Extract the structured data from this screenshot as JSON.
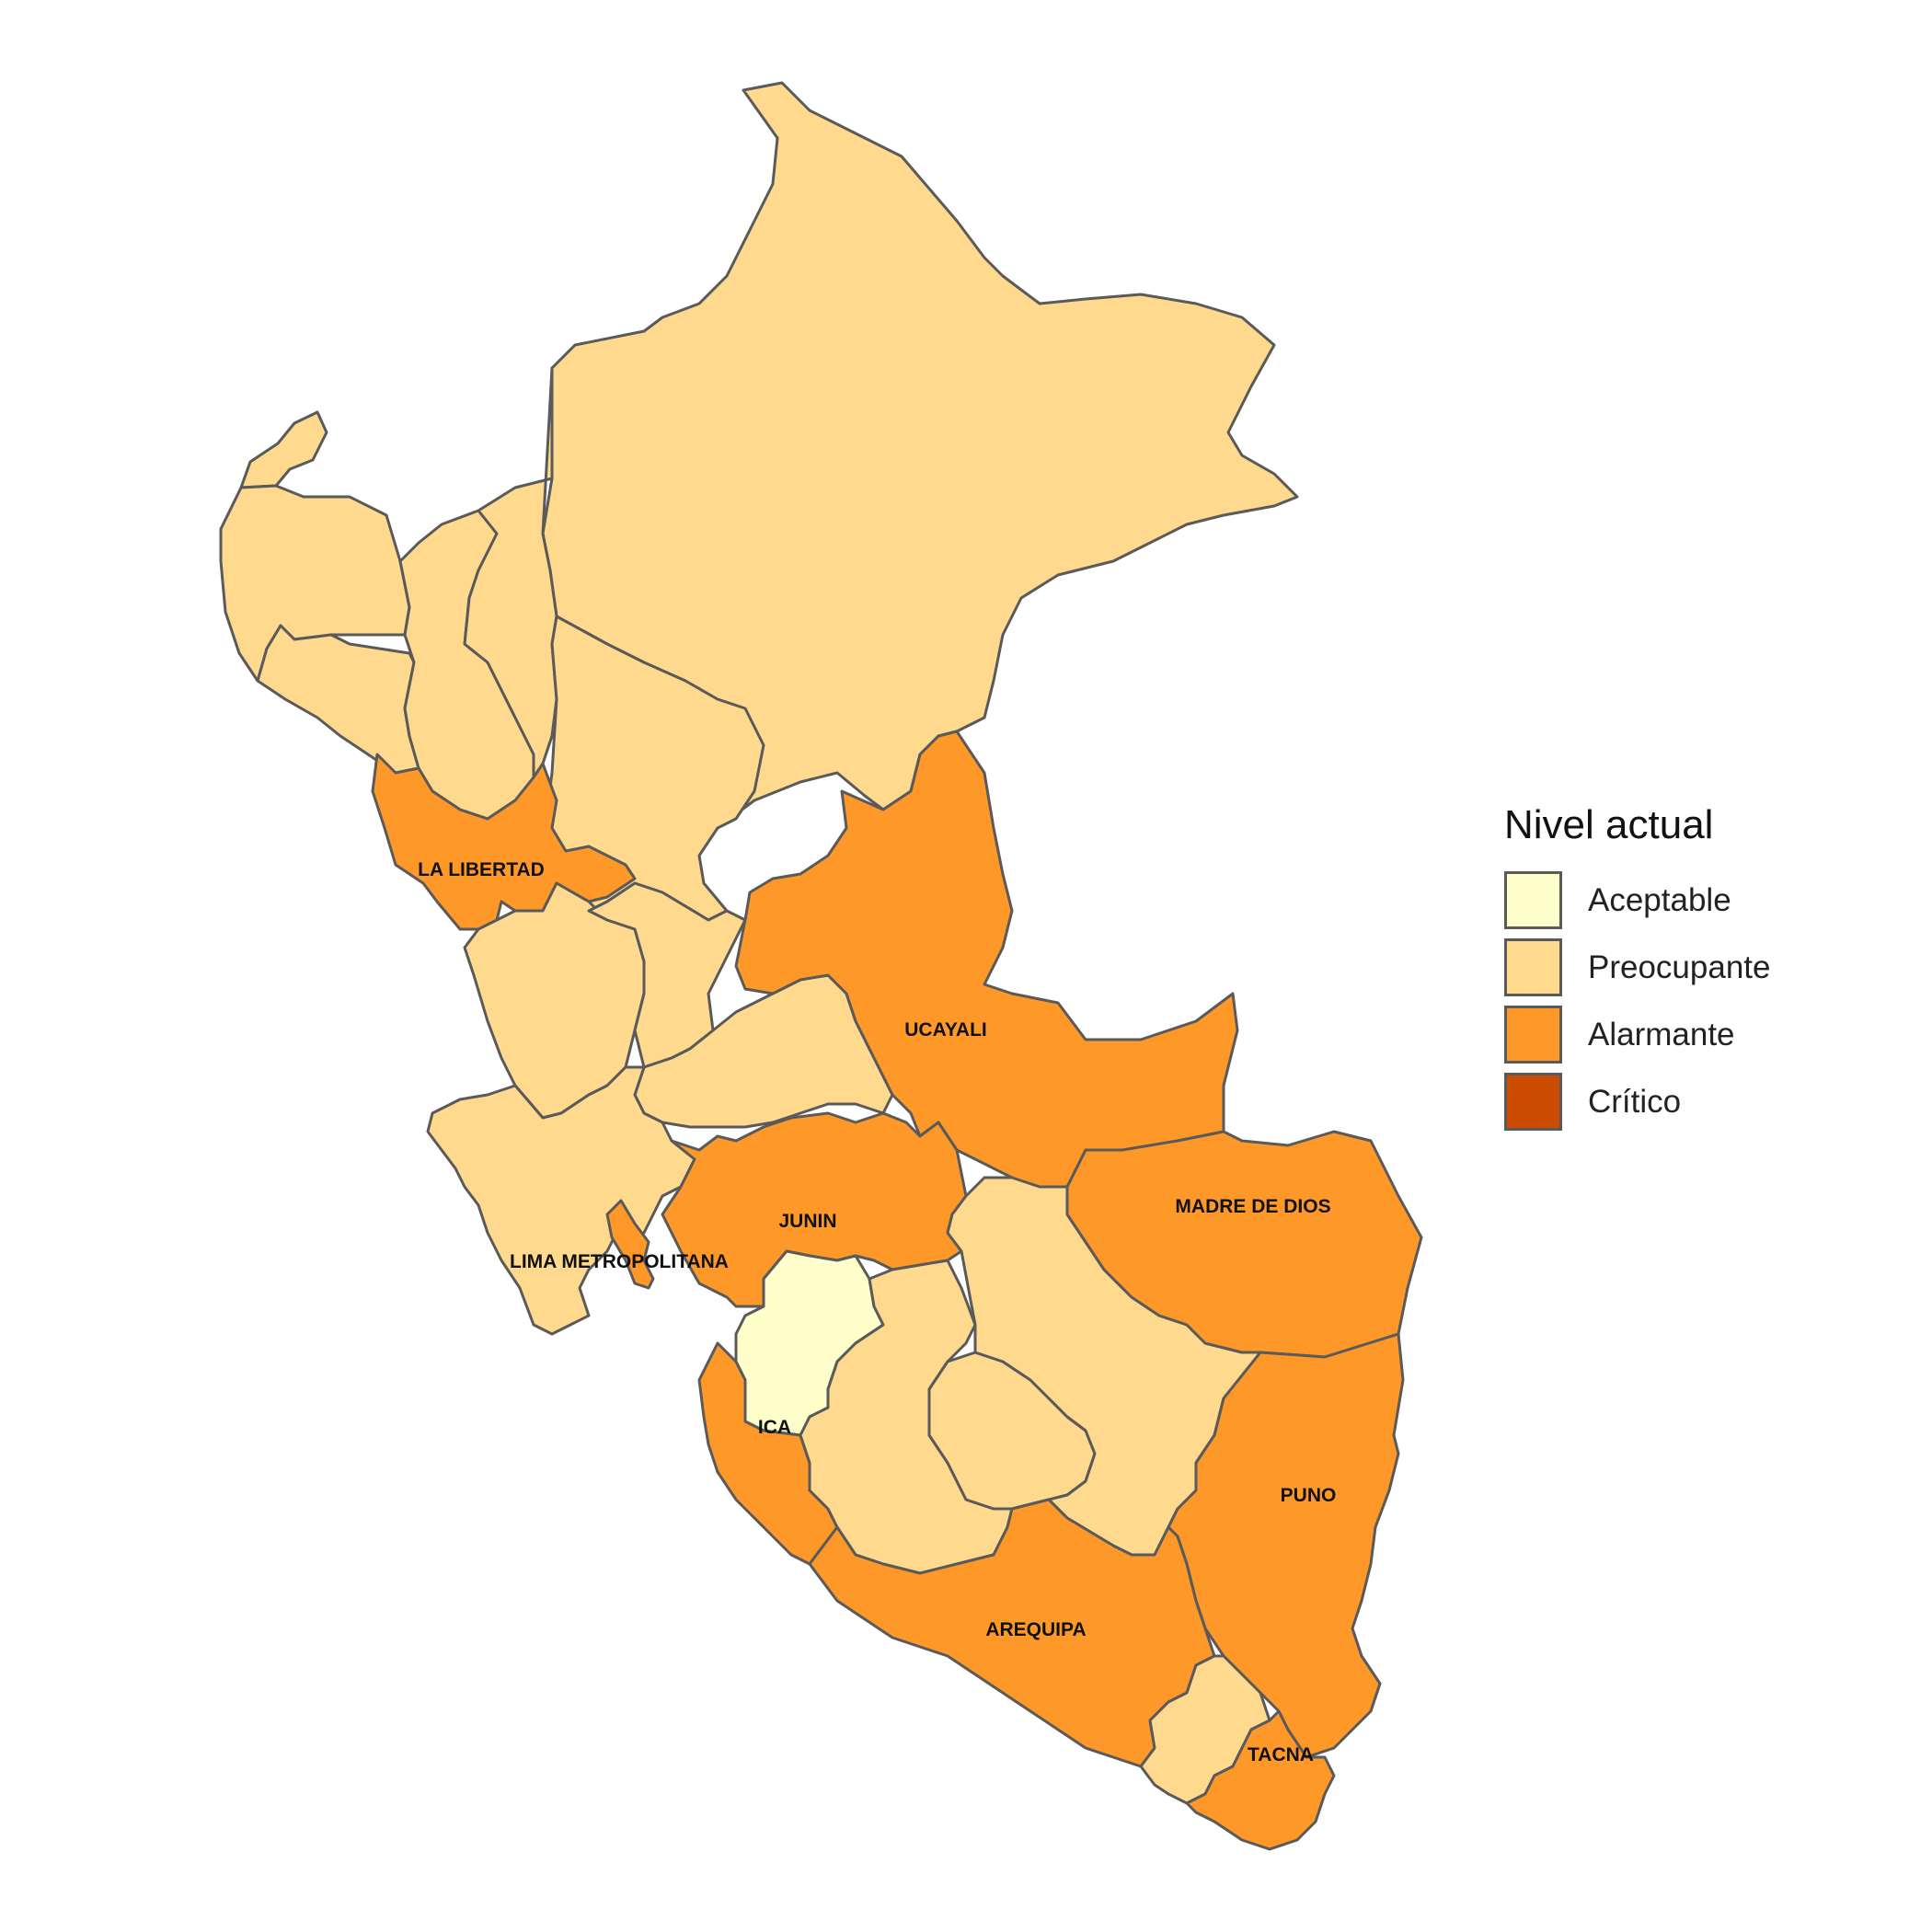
{
  "legend": {
    "title": "Nivel actual",
    "items": [
      {
        "label": "Aceptable",
        "color": "#FFFFCC"
      },
      {
        "label": "Preocupante",
        "color": "#FED98E"
      },
      {
        "label": "Alarmante",
        "color": "#FE9929"
      },
      {
        "label": "Crítico",
        "color": "#CC4C02"
      }
    ]
  },
  "regions": [
    {
      "id": "loreto",
      "level": "Preocupante"
    },
    {
      "id": "tumbes",
      "level": "Preocupante"
    },
    {
      "id": "piura",
      "level": "Preocupante"
    },
    {
      "id": "lambayeque",
      "level": "Preocupante"
    },
    {
      "id": "cajamarca",
      "level": "Preocupante"
    },
    {
      "id": "amazonas",
      "level": "Preocupante"
    },
    {
      "id": "san-martin",
      "level": "Preocupante"
    },
    {
      "id": "la-libertad",
      "level": "Alarmante",
      "label": "LA LIBERTAD"
    },
    {
      "id": "ancash",
      "level": "Preocupante"
    },
    {
      "id": "huanuco",
      "level": "Preocupante"
    },
    {
      "id": "pasco",
      "level": "Preocupante"
    },
    {
      "id": "ucayali",
      "level": "Alarmante",
      "label": "UCAYALI"
    },
    {
      "id": "lima",
      "level": "Preocupante"
    },
    {
      "id": "lima-metropolitana",
      "level": "Alarmante",
      "label": "LIMA METROPOLITANA"
    },
    {
      "id": "junin",
      "level": "Alarmante",
      "label": "JUNIN"
    },
    {
      "id": "huancavelica",
      "level": "Aceptable"
    },
    {
      "id": "ica",
      "level": "Alarmante",
      "label": "ICA"
    },
    {
      "id": "ayacucho",
      "level": "Preocupante"
    },
    {
      "id": "apurimac",
      "level": "Preocupante"
    },
    {
      "id": "cusco",
      "level": "Preocupante"
    },
    {
      "id": "madre-de-dios",
      "level": "Alarmante",
      "label": "MADRE DE DIOS"
    },
    {
      "id": "puno",
      "level": "Alarmante",
      "label": "PUNO"
    },
    {
      "id": "arequipa",
      "level": "Alarmante",
      "label": "AREQUIPA"
    },
    {
      "id": "moquegua",
      "level": "Preocupante"
    },
    {
      "id": "tacna",
      "level": "Alarmante",
      "label": "TACNA"
    }
  ]
}
